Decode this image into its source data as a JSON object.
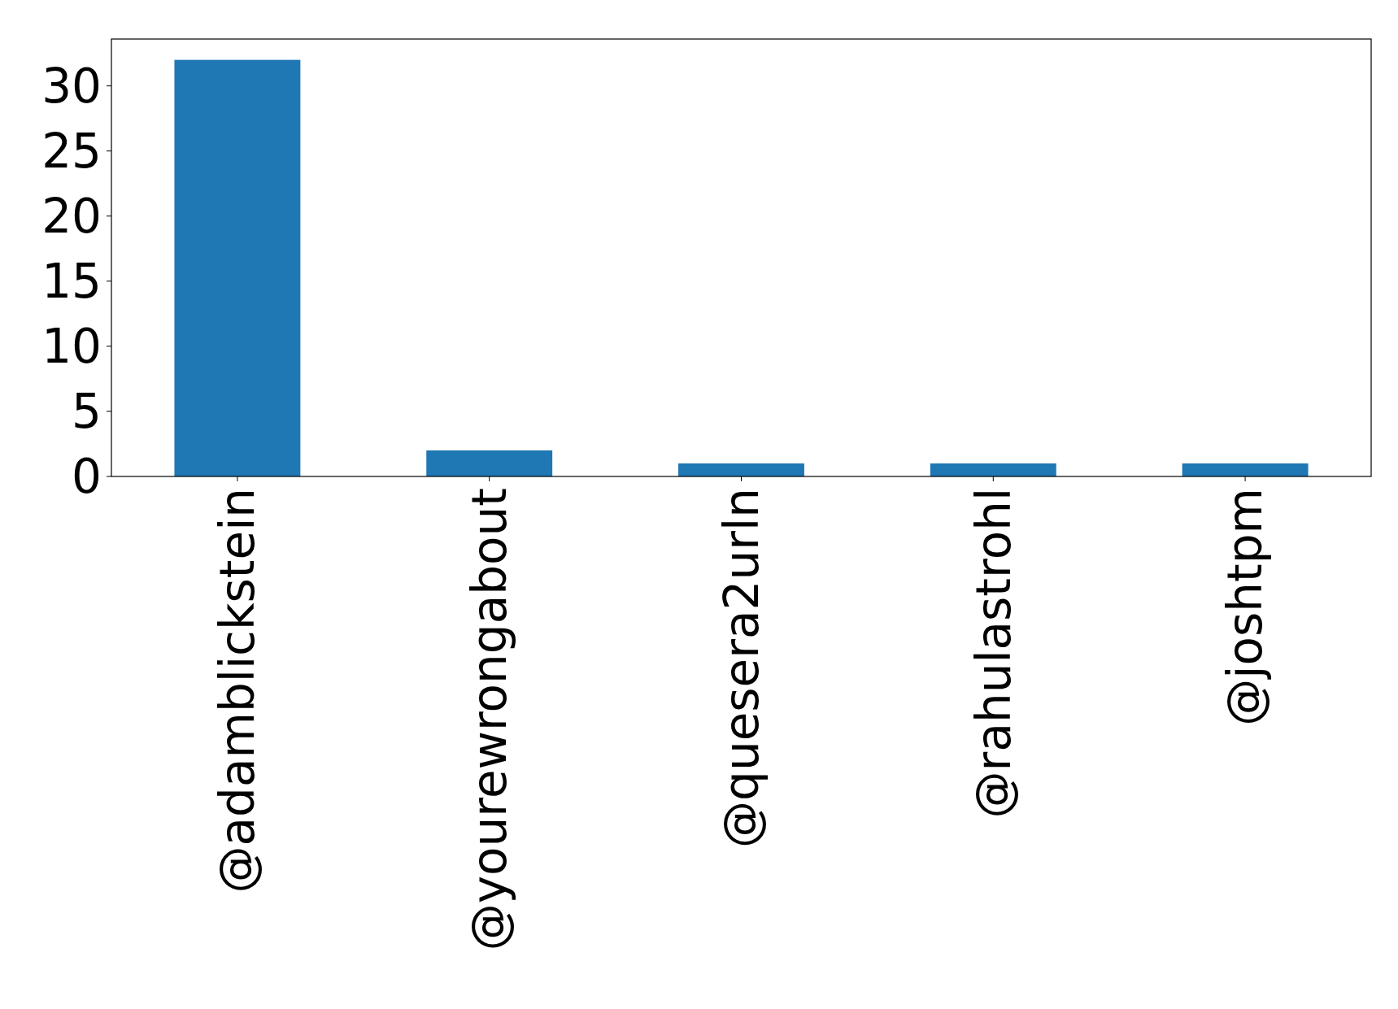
{
  "chart_data": {
    "type": "bar",
    "categories": [
      "@adamblickstein",
      "@yourewrongabout",
      "@quesera2urln",
      "@rahulastrohl",
      "@joshtpm"
    ],
    "values": [
      32,
      2,
      1,
      1,
      1
    ],
    "color": "#1f77b4",
    "ylim": [
      0,
      33.6
    ],
    "yticks": [
      0,
      5,
      10,
      15,
      20,
      25,
      30
    ],
    "grid": false
  }
}
